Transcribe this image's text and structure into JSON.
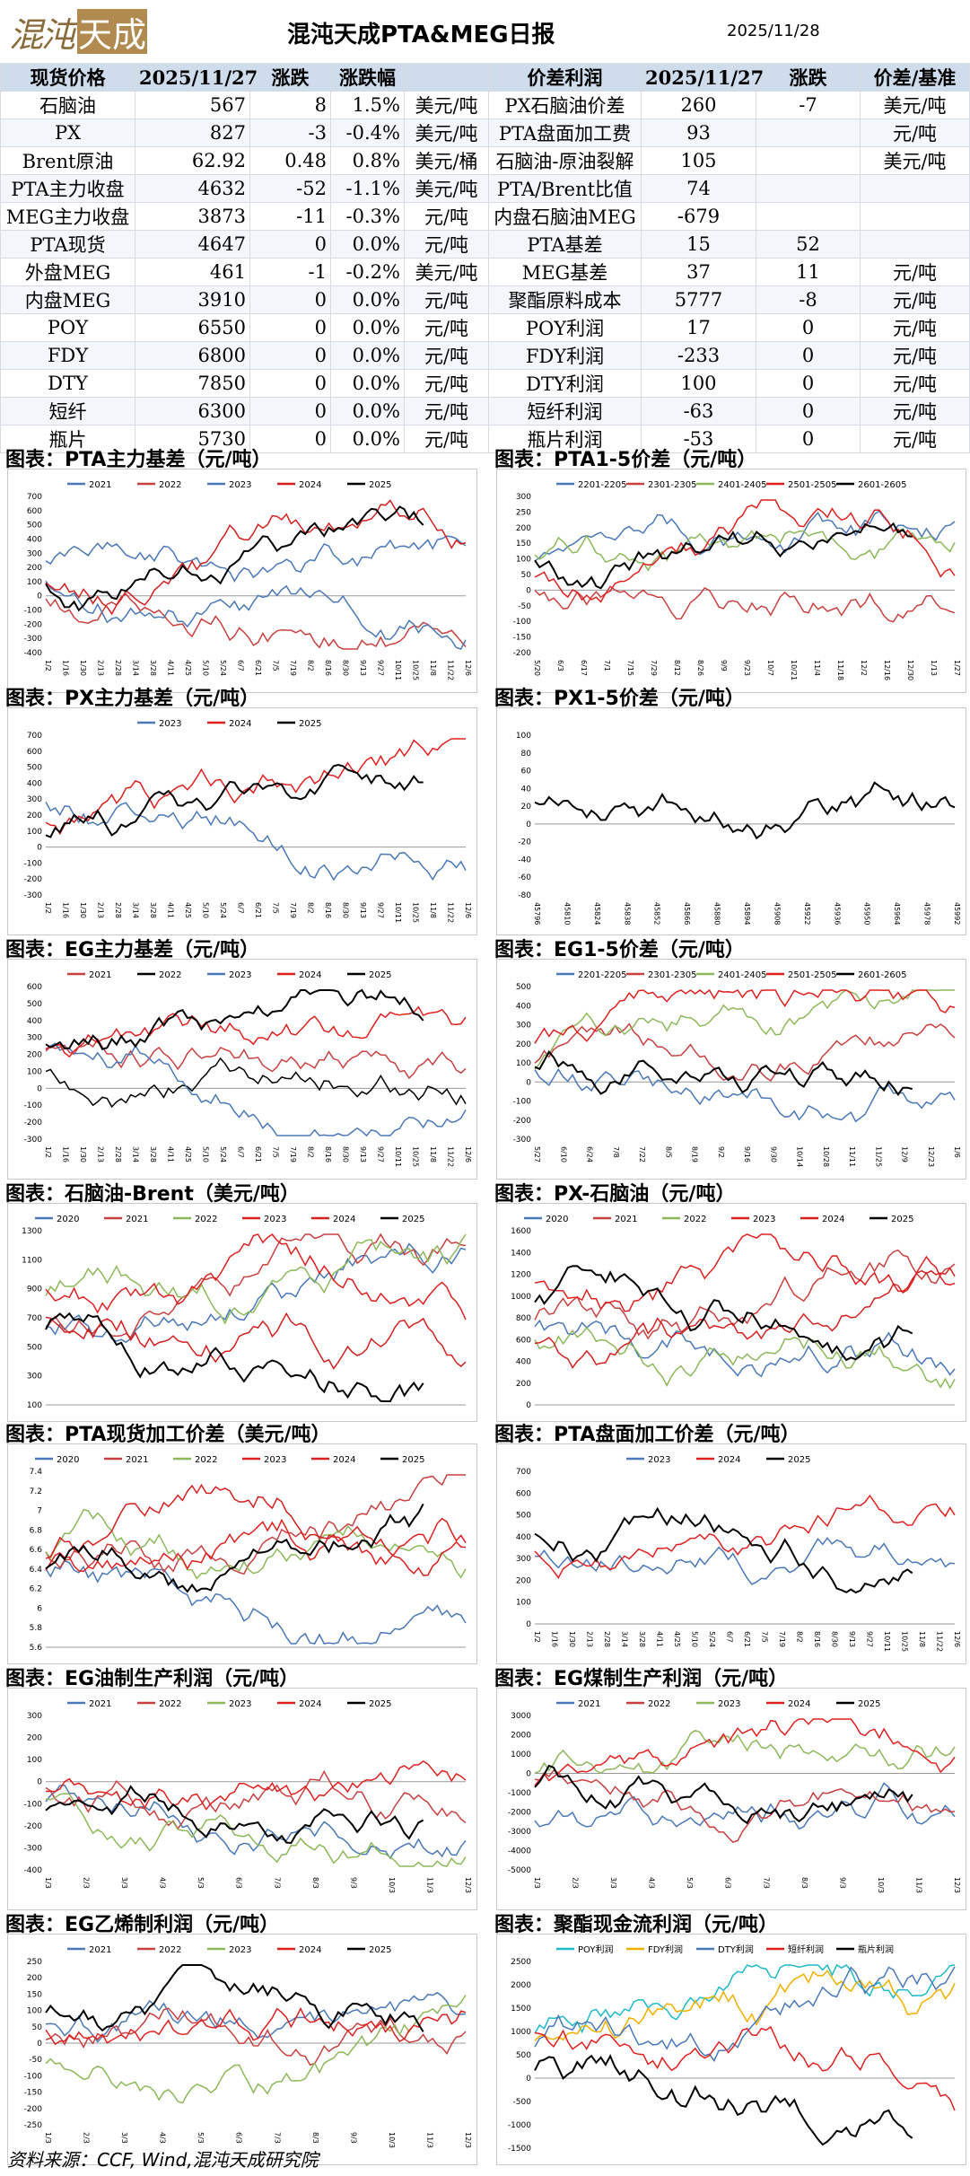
{
  "header": {
    "logo_text_1": "混沌",
    "logo_text_2": "天成",
    "title": "混沌天成PTA&MEG日报",
    "date": "2025/11/28"
  },
  "table": {
    "headers": [
      "现货价格",
      "2025/11/27",
      "涨跌",
      "涨跌幅",
      "",
      "价差利润",
      "2025/11/27",
      "涨跌",
      "价差/基准"
    ],
    "rows": [
      [
        "石脑油",
        "567",
        "8",
        "1.5%",
        "美元/吨",
        "PX石脑油价差",
        "260",
        "-7",
        "美元/吨"
      ],
      [
        "PX",
        "827",
        "-3",
        "-0.4%",
        "美元/吨",
        "PTA盘面加工费",
        "93",
        "",
        "元/吨"
      ],
      [
        "Brent原油",
        "62.92",
        "0.48",
        "0.8%",
        "美元/桶",
        "石脑油-原油裂解",
        "105",
        "",
        "美元/吨"
      ],
      [
        "PTA主力收盘",
        "4632",
        "-52",
        "-1.1%",
        "美元/吨",
        "PTA/Brent比值",
        "74",
        "",
        ""
      ],
      [
        "MEG主力收盘",
        "3873",
        "-11",
        "-0.3%",
        "元/吨",
        "内盘石脑油MEG",
        "-679",
        "",
        ""
      ],
      [
        "PTA现货",
        "4647",
        "0",
        "0.0%",
        "元/吨",
        "PTA基差",
        "15",
        "52",
        ""
      ],
      [
        "外盘MEG",
        "461",
        "-1",
        "-0.2%",
        "美元/吨",
        "MEG基差",
        "37",
        "11",
        "元/吨"
      ],
      [
        "内盘MEG",
        "3910",
        "0",
        "0.0%",
        "元/吨",
        "聚酯原料成本",
        "5777",
        "-8",
        "元/吨"
      ],
      [
        "POY",
        "6550",
        "0",
        "0.0%",
        "元/吨",
        "POY利润",
        "17",
        "0",
        "元/吨"
      ],
      [
        "FDY",
        "6800",
        "0",
        "0.0%",
        "元/吨",
        "FDY利润",
        "-233",
        "0",
        "元/吨"
      ],
      [
        "DTY",
        "7850",
        "0",
        "0.0%",
        "元/吨",
        "DTY利润",
        "100",
        "0",
        "元/吨"
      ],
      [
        "短纤",
        "6300",
        "0",
        "0.0%",
        "元/吨",
        "短纤利润",
        "-63",
        "0",
        "元/吨"
      ],
      [
        "瓶片",
        "5730",
        "0",
        "0.0%",
        "元/吨",
        "瓶片利润",
        "-53",
        "0",
        "元/吨"
      ]
    ]
  },
  "charts": [
    {
      "title": "图表：PTA主力基差（元/吨）",
      "legend": [
        "2021",
        "2022",
        "2023",
        "2024",
        "2025"
      ],
      "colors": [
        "#4a78b8",
        "#c94040",
        "#4a78b8",
        "#d42020",
        "#000000"
      ],
      "yticks": [
        "700",
        "600",
        "500",
        "400",
        "300",
        "200",
        "100",
        "0",
        "-100",
        "-200",
        "-300",
        "-400"
      ],
      "xticks": [
        "1/2",
        "1/16",
        "1/30",
        "2/13",
        "2/28",
        "3/14",
        "3/28",
        "4/11",
        "4/25",
        "5/10",
        "5/24",
        "6/7",
        "6/21",
        "7/5",
        "7/19",
        "8/2",
        "8/16",
        "8/30",
        "9/13",
        "9/27",
        "10/11",
        "10/25",
        "11/8",
        "11/22",
        "12/6"
      ]
    },
    {
      "title": "图表：PTA1-5价差（元/吨）",
      "legend": [
        "2201-2205",
        "2301-2305",
        "2401-2405",
        "2501-2505",
        "2601-2605"
      ],
      "colors": [
        "#4a78b8",
        "#c94040",
        "#8db85a",
        "#e02020",
        "#000000"
      ],
      "yticks": [
        "300",
        "250",
        "200",
        "150",
        "100",
        "50",
        "0",
        "-50",
        "-100",
        "-150",
        "-200"
      ],
      "xticks": [
        "5/20",
        "6/3",
        "6/17",
        "7/1",
        "7/15",
        "7/29",
        "8/12",
        "8/26",
        "9/9",
        "9/23",
        "10/7",
        "10/21",
        "11/4",
        "11/18",
        "12/2",
        "12/16",
        "12/30",
        "1/13",
        "1/27"
      ]
    },
    {
      "title": "图表：PX主力基差（元/吨）",
      "legend": [
        "2023",
        "2024",
        "2025"
      ],
      "colors": [
        "#4a78b8",
        "#e02020",
        "#000000"
      ],
      "yticks": [
        "700",
        "600",
        "500",
        "400",
        "300",
        "200",
        "100",
        "0",
        "-100",
        "-200",
        "-300"
      ],
      "xticks": [
        "1/2",
        "1/16",
        "1/30",
        "2/13",
        "2/28",
        "3/14",
        "3/28",
        "4/11",
        "4/25",
        "5/10",
        "5/24",
        "6/7",
        "6/21",
        "7/5",
        "7/19",
        "8/2",
        "8/16",
        "8/30",
        "9/13",
        "9/27",
        "10/11",
        "10/25",
        "11/8",
        "11/22",
        "12/6"
      ]
    },
    {
      "title": "图表：PX1-5价差（元/吨）",
      "legend": [],
      "colors": [
        "#000000"
      ],
      "yticks": [
        "100",
        "80",
        "60",
        "40",
        "20",
        "0",
        "-20",
        "-40",
        "-60",
        "-80"
      ],
      "xticks": [
        "45796",
        "45810",
        "45824",
        "45838",
        "45852",
        "45866",
        "45880",
        "45894",
        "45908",
        "45922",
        "45936",
        "45950",
        "45964",
        "45978",
        "45992"
      ]
    },
    {
      "title": "图表：EG主力基差（元/吨）",
      "legend": [
        "2021",
        "2022",
        "2023",
        "2024",
        "2025"
      ],
      "colors": [
        "#c94040",
        "#000000",
        "#4a78b8",
        "#e02020",
        "#000000"
      ],
      "yticks": [
        "600",
        "500",
        "400",
        "300",
        "200",
        "100",
        "0",
        "-100",
        "-200",
        "-300"
      ],
      "xticks": [
        "1/2",
        "1/16",
        "1/30",
        "2/13",
        "2/28",
        "3/14",
        "3/28",
        "4/11",
        "4/25",
        "5/10",
        "5/24",
        "6/7",
        "6/21",
        "7/5",
        "7/19",
        "8/2",
        "8/16",
        "8/30",
        "9/13",
        "9/27",
        "10/11",
        "10/25",
        "11/8",
        "11/22",
        "12/6"
      ]
    },
    {
      "title": "图表：EG1-5价差（元/吨）",
      "legend": [
        "2201-2205",
        "2301-2305",
        "2401-2405",
        "2501-2505",
        "2601-2605"
      ],
      "colors": [
        "#4a78b8",
        "#c94040",
        "#8db85a",
        "#e02020",
        "#000000"
      ],
      "yticks": [
        "500",
        "400",
        "300",
        "200",
        "100",
        "0",
        "-100",
        "-200",
        "-300"
      ],
      "xticks": [
        "5/27",
        "6/10",
        "6/24",
        "7/8",
        "7/22",
        "8/5",
        "8/19",
        "9/2",
        "9/16",
        "9/30",
        "10/14",
        "10/28",
        "11/11",
        "11/25",
        "12/9",
        "12/23",
        "1/6"
      ]
    },
    {
      "title": "图表：石脑油-Brent（美元/吨）",
      "legend": [
        "2020",
        "2021",
        "2022",
        "2023",
        "2024",
        "2025"
      ],
      "colors": [
        "#4a78b8",
        "#c94040",
        "#8db85a",
        "#e02020",
        "#d42020",
        "#000000"
      ],
      "yticks": [
        "1300",
        "1100",
        "900",
        "700",
        "500",
        "300",
        "100"
      ],
      "xticks": []
    },
    {
      "title": "图表：PX-石脑油（元/吨）",
      "legend": [
        "2020",
        "2021",
        "2022",
        "2023",
        "2024",
        "2025"
      ],
      "colors": [
        "#4a78b8",
        "#c94040",
        "#8db85a",
        "#e02020",
        "#d42020",
        "#000000"
      ],
      "yticks": [
        "1600",
        "1400",
        "1200",
        "1000",
        "800",
        "600",
        "400",
        "200",
        "0"
      ],
      "xticks": []
    },
    {
      "title": "图表：PTA现货加工价差（美元/吨）",
      "legend": [
        "2020",
        "2021",
        "2022",
        "2023",
        "2024",
        "2025"
      ],
      "colors": [
        "#4a78b8",
        "#c94040",
        "#8db85a",
        "#e02020",
        "#d42020",
        "#000000"
      ],
      "yticks": [
        "7.4",
        "7.2",
        "7",
        "6.8",
        "6.6",
        "6.4",
        "6.2",
        "6",
        "5.8",
        "5.6"
      ],
      "xticks": []
    },
    {
      "title": "图表：PTA盘面加工价差（元/吨）",
      "legend": [
        "2023",
        "2024",
        "2025"
      ],
      "colors": [
        "#4a78b8",
        "#e02020",
        "#000000"
      ],
      "yticks": [
        "700",
        "600",
        "500",
        "400",
        "300",
        "200",
        "100",
        "0"
      ],
      "xticks": [
        "1/2",
        "1/16",
        "1/30",
        "2/13",
        "2/28",
        "3/14",
        "3/28",
        "4/11",
        "4/25",
        "5/10",
        "5/24",
        "6/7",
        "6/21",
        "7/5",
        "7/19",
        "8/2",
        "8/16",
        "8/30",
        "9/13",
        "9/27",
        "10/11",
        "10/25",
        "11/8",
        "11/22",
        "12/6"
      ]
    },
    {
      "title": "图表：EG油制生产利润（元/吨）",
      "legend": [
        "2021",
        "2022",
        "2023",
        "2024",
        "2025"
      ],
      "colors": [
        "#4a78b8",
        "#c94040",
        "#8db85a",
        "#e02020",
        "#000000"
      ],
      "yticks": [
        "300",
        "200",
        "100",
        "0",
        "-100",
        "-200",
        "-300",
        "-400"
      ],
      "xticks": [
        "1/3",
        "2/3",
        "3/3",
        "4/3",
        "5/3",
        "6/3",
        "7/3",
        "8/3",
        "9/3",
        "10/3",
        "11/3",
        "12/3"
      ]
    },
    {
      "title": "图表：EG煤制生产利润（元/吨）",
      "legend": [
        "2021",
        "2022",
        "2023",
        "2024",
        "2025"
      ],
      "colors": [
        "#4a78b8",
        "#c94040",
        "#8db85a",
        "#e02020",
        "#000000"
      ],
      "yticks": [
        "3000",
        "2000",
        "1000",
        "0",
        "-1000",
        "-2000",
        "-3000",
        "-4000",
        "-5000"
      ],
      "xticks": [
        "1/3",
        "2/3",
        "3/3",
        "4/3",
        "5/3",
        "6/3",
        "7/3",
        "8/3",
        "9/3",
        "10/3",
        "11/3",
        "12/3"
      ]
    },
    {
      "title": "图表：EG乙烯制利润（元/吨）",
      "legend": [
        "2021",
        "2022",
        "2023",
        "2024",
        "2025"
      ],
      "colors": [
        "#4a78b8",
        "#c94040",
        "#8db85a",
        "#e02020",
        "#000000"
      ],
      "yticks": [
        "250",
        "200",
        "150",
        "100",
        "50",
        "0",
        "-50",
        "-100",
        "-150",
        "-200",
        "-250"
      ],
      "xticks": [
        "1/3",
        "2/3",
        "3/3",
        "4/3",
        "5/3",
        "6/3",
        "7/3",
        "8/3",
        "9/3",
        "10/3",
        "11/3",
        "12/3"
      ]
    },
    {
      "title": "图表：聚酯现金流利润（元/吨）",
      "legend": [
        "POY利润",
        "FDY利润",
        "DTY利润",
        "短纤利润",
        "瓶片利润"
      ],
      "colors": [
        "#1fb8c8",
        "#f0b000",
        "#4a78b8",
        "#e02020",
        "#000000"
      ],
      "yticks": [
        "2500",
        "2000",
        "1500",
        "1000",
        "500",
        "0",
        "-500",
        "-1000",
        "-1500"
      ],
      "xticks": []
    }
  ],
  "footer": {
    "source": "资料来源：CCF, Wind,混沌天成研究院"
  }
}
